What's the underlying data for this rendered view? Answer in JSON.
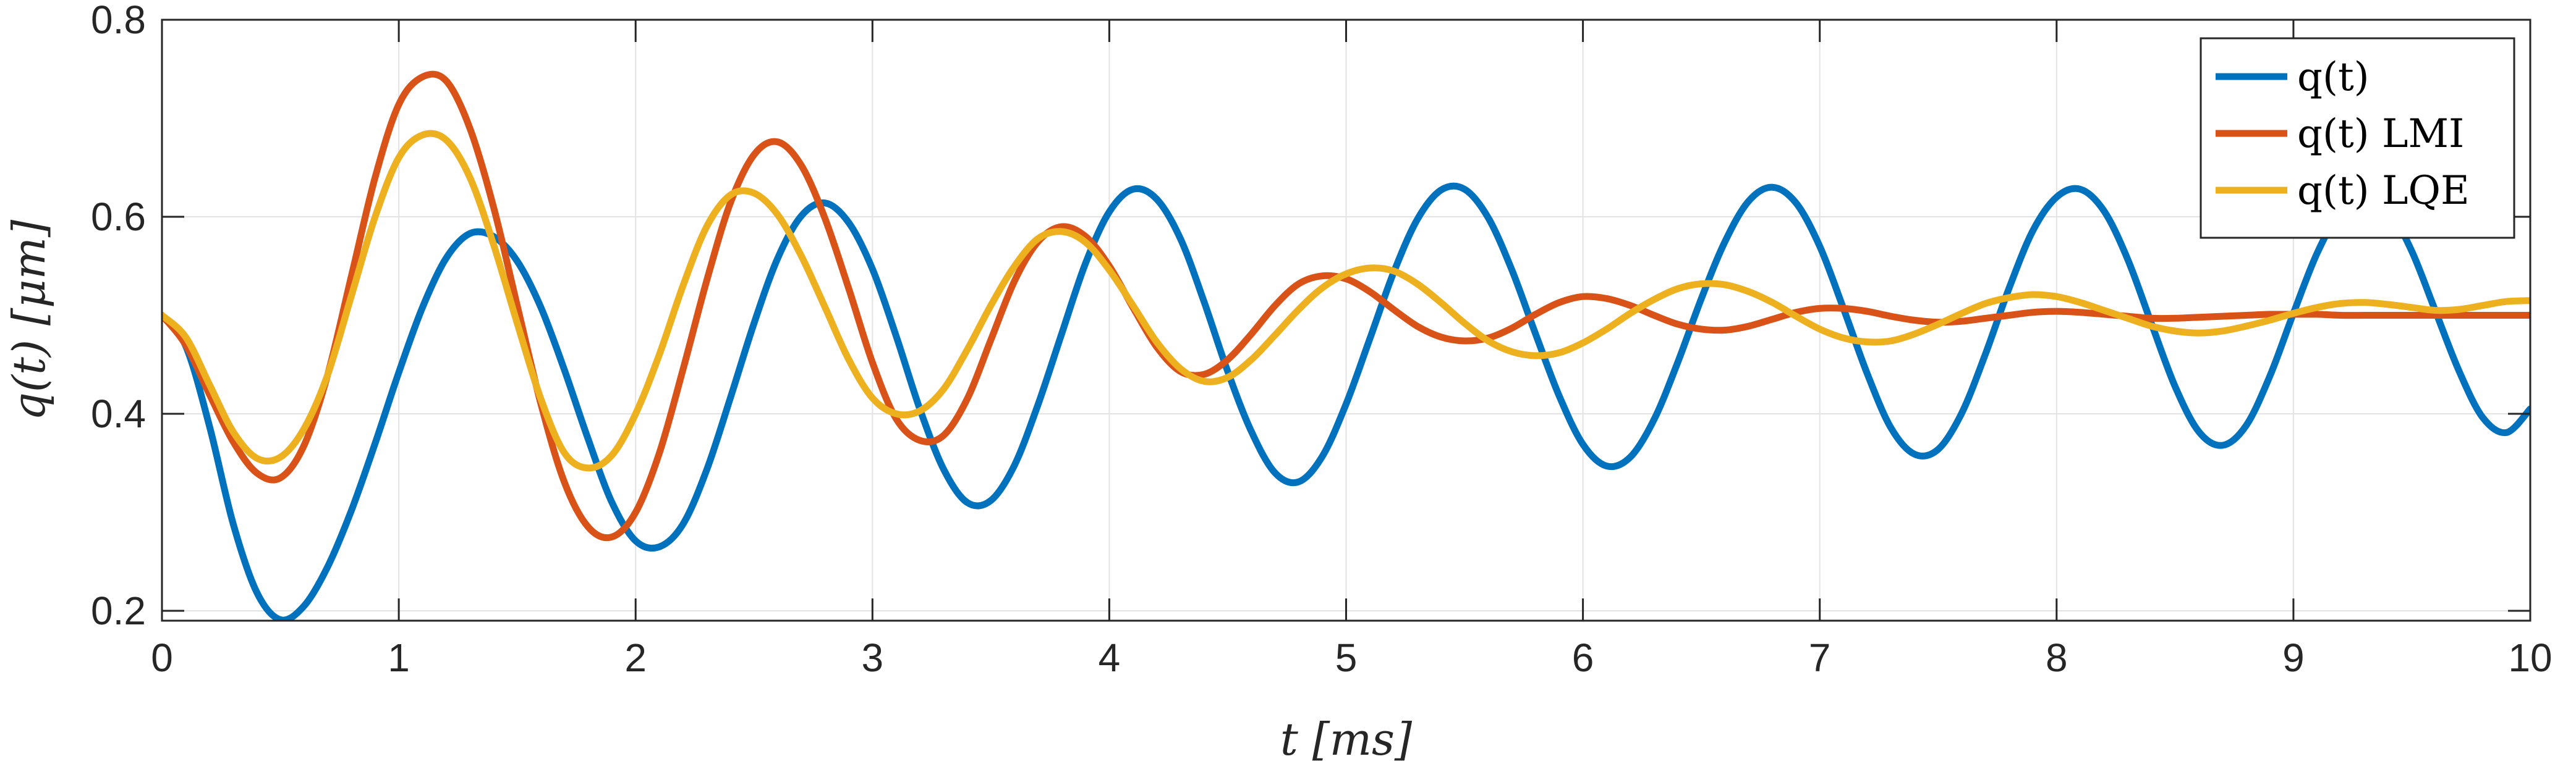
{
  "chart_data": {
    "type": "line",
    "xlabel": "t [ms]",
    "ylabel": "q(t) [μm]",
    "xlim": [
      0,
      10
    ],
    "ylim": [
      0.19,
      0.8
    ],
    "xticks": [
      "0",
      "1",
      "2",
      "3",
      "4",
      "5",
      "6",
      "7",
      "8",
      "9",
      "10"
    ],
    "yticks": [
      "0.2",
      "0.4",
      "0.6",
      "0.8"
    ],
    "grid": true,
    "legend_position": "top-right",
    "series": [
      {
        "name": "q(t)",
        "color": "#0072BD",
        "x": [
          0,
          0.1,
          0.2,
          0.3,
          0.4,
          0.5,
          0.6,
          0.7,
          0.8,
          0.9,
          1.0,
          1.1,
          1.2,
          1.3,
          1.4,
          1.5,
          1.6,
          1.7,
          1.8,
          1.9,
          2.0,
          2.1,
          2.2,
          2.3,
          2.4,
          2.5,
          2.6,
          2.7,
          2.8,
          2.9,
          3.0,
          3.1,
          3.2,
          3.3,
          3.4,
          3.5,
          3.6,
          3.7,
          3.8,
          3.9,
          4.0,
          4.1,
          4.2,
          4.3,
          4.4,
          4.5,
          4.6,
          4.7,
          4.8,
          4.9,
          5.0,
          5.1,
          5.2,
          5.3,
          5.4,
          5.5,
          5.6,
          5.7,
          5.8,
          5.9,
          6.0,
          6.1,
          6.2,
          6.3,
          6.4,
          6.5,
          6.6,
          6.7,
          6.8,
          6.9,
          7.0,
          7.1,
          7.2,
          7.3,
          7.4,
          7.5,
          7.6,
          7.7,
          7.8,
          7.9,
          8.0,
          8.1,
          8.2,
          8.3,
          8.4,
          8.5,
          8.6,
          8.7,
          8.8,
          8.9,
          9.0,
          9.1,
          9.2,
          9.3,
          9.4,
          9.5,
          9.6,
          9.7,
          9.8,
          9.9,
          10.0
        ],
        "y": [
          0.5,
          0.469,
          0.388,
          0.289,
          0.219,
          0.191,
          0.205,
          0.245,
          0.302,
          0.37,
          0.442,
          0.508,
          0.558,
          0.583,
          0.58,
          0.555,
          0.508,
          0.444,
          0.374,
          0.31,
          0.271,
          0.265,
          0.288,
          0.343,
          0.416,
          0.492,
          0.558,
          0.601,
          0.614,
          0.594,
          0.547,
          0.479,
          0.405,
          0.344,
          0.31,
          0.312,
          0.348,
          0.41,
          0.482,
          0.553,
          0.605,
          0.628,
          0.618,
          0.578,
          0.514,
          0.443,
          0.382,
          0.34,
          0.331,
          0.357,
          0.41,
          0.476,
          0.543,
          0.597,
          0.627,
          0.628,
          0.599,
          0.546,
          0.481,
          0.418,
          0.369,
          0.347,
          0.356,
          0.394,
          0.452,
          0.517,
          0.575,
          0.616,
          0.63,
          0.614,
          0.57,
          0.507,
          0.441,
          0.386,
          0.359,
          0.364,
          0.401,
          0.461,
          0.528,
          0.586,
          0.62,
          0.628,
          0.606,
          0.557,
          0.492,
          0.428,
          0.382,
          0.368,
          0.388,
          0.438,
          0.502,
          0.563,
          0.606,
          0.622,
          0.608,
          0.565,
          0.504,
          0.443,
          0.396,
          0.381,
          0.405
        ]
      },
      {
        "name": "q(t) LMI",
        "color": "#D95319",
        "x": [
          0,
          0.1,
          0.2,
          0.3,
          0.4,
          0.5,
          0.6,
          0.7,
          0.8,
          0.9,
          1.0,
          1.1,
          1.2,
          1.3,
          1.4,
          1.5,
          1.6,
          1.7,
          1.8,
          1.9,
          2.0,
          2.1,
          2.2,
          2.3,
          2.4,
          2.5,
          2.6,
          2.7,
          2.8,
          2.9,
          3.0,
          3.1,
          3.2,
          3.3,
          3.4,
          3.5,
          3.6,
          3.7,
          3.8,
          3.9,
          4.0,
          4.1,
          4.2,
          4.3,
          4.4,
          4.5,
          4.6,
          4.7,
          4.8,
          4.9,
          5.0,
          5.1,
          5.2,
          5.3,
          5.4,
          5.5,
          5.6,
          5.7,
          5.8,
          5.9,
          6.0,
          6.1,
          6.2,
          6.3,
          6.4,
          6.5,
          6.6,
          6.7,
          6.8,
          6.9,
          7.0,
          7.1,
          7.2,
          7.3,
          7.4,
          7.5,
          7.6,
          7.7,
          7.8,
          7.9,
          8.0,
          8.1,
          8.2,
          8.3,
          8.4,
          8.5,
          8.6,
          8.7,
          8.8,
          8.9,
          9.0,
          9.1,
          9.2,
          9.3,
          9.4,
          9.5,
          9.6,
          9.7,
          9.8,
          9.9,
          10.0
        ],
        "y": [
          0.5,
          0.47,
          0.42,
          0.372,
          0.34,
          0.335,
          0.368,
          0.44,
          0.54,
          0.64,
          0.714,
          0.742,
          0.738,
          0.69,
          0.61,
          0.51,
          0.41,
          0.33,
          0.285,
          0.275,
          0.3,
          0.36,
          0.445,
          0.535,
          0.614,
          0.663,
          0.676,
          0.652,
          0.598,
          0.527,
          0.452,
          0.395,
          0.373,
          0.378,
          0.415,
          0.475,
          0.535,
          0.575,
          0.59,
          0.58,
          0.55,
          0.508,
          0.468,
          0.443,
          0.44,
          0.455,
          0.481,
          0.51,
          0.532,
          0.54,
          0.537,
          0.524,
          0.506,
          0.489,
          0.478,
          0.474,
          0.477,
          0.487,
          0.501,
          0.513,
          0.519,
          0.517,
          0.51,
          0.5,
          0.491,
          0.486,
          0.485,
          0.489,
          0.496,
          0.503,
          0.507,
          0.507,
          0.504,
          0.499,
          0.495,
          0.493,
          0.494,
          0.497,
          0.5,
          0.503,
          0.504,
          0.503,
          0.501,
          0.499,
          0.497,
          0.497,
          0.498,
          0.499,
          0.5,
          0.501,
          0.501,
          0.501,
          0.5,
          0.5,
          0.5,
          0.5,
          0.5,
          0.5,
          0.5,
          0.5,
          0.5
        ]
      },
      {
        "name": "q(t) LQE",
        "color": "#EDB120",
        "x": [
          0,
          0.1,
          0.2,
          0.3,
          0.4,
          0.5,
          0.6,
          0.7,
          0.8,
          0.9,
          1.0,
          1.1,
          1.2,
          1.3,
          1.4,
          1.5,
          1.6,
          1.7,
          1.8,
          1.9,
          2.0,
          2.1,
          2.2,
          2.3,
          2.4,
          2.5,
          2.6,
          2.7,
          2.8,
          2.9,
          3.0,
          3.1,
          3.2,
          3.3,
          3.4,
          3.5,
          3.6,
          3.7,
          3.8,
          3.9,
          4.0,
          4.1,
          4.2,
          4.3,
          4.4,
          4.5,
          4.6,
          4.7,
          4.8,
          4.9,
          5.0,
          5.1,
          5.2,
          5.3,
          5.4,
          5.5,
          5.6,
          5.7,
          5.8,
          5.9,
          6.0,
          6.1,
          6.2,
          6.3,
          6.4,
          6.5,
          6.6,
          6.7,
          6.8,
          6.9,
          7.0,
          7.1,
          7.2,
          7.3,
          7.4,
          7.5,
          7.6,
          7.7,
          7.8,
          7.9,
          8.0,
          8.1,
          8.2,
          8.3,
          8.4,
          8.5,
          8.6,
          8.7,
          8.8,
          8.9,
          9.0,
          9.1,
          9.2,
          9.3,
          9.4,
          9.5,
          9.6,
          9.7,
          9.8,
          9.9,
          10.0
        ],
        "y": [
          0.5,
          0.478,
          0.43,
          0.382,
          0.355,
          0.356,
          0.385,
          0.44,
          0.52,
          0.6,
          0.66,
          0.683,
          0.678,
          0.64,
          0.572,
          0.492,
          0.415,
          0.36,
          0.345,
          0.358,
          0.4,
          0.46,
          0.53,
          0.59,
          0.622,
          0.624,
          0.602,
          0.56,
          0.508,
          0.455,
          0.416,
          0.4,
          0.403,
          0.425,
          0.465,
          0.51,
          0.55,
          0.578,
          0.585,
          0.574,
          0.546,
          0.51,
          0.473,
          0.446,
          0.433,
          0.437,
          0.455,
          0.48,
          0.506,
          0.528,
          0.542,
          0.548,
          0.545,
          0.532,
          0.513,
          0.492,
          0.474,
          0.463,
          0.459,
          0.462,
          0.472,
          0.486,
          0.502,
          0.516,
          0.527,
          0.532,
          0.531,
          0.524,
          0.513,
          0.499,
          0.486,
          0.477,
          0.473,
          0.474,
          0.481,
          0.491,
          0.502,
          0.512,
          0.518,
          0.521,
          0.519,
          0.513,
          0.505,
          0.497,
          0.489,
          0.484,
          0.482,
          0.484,
          0.489,
          0.495,
          0.502,
          0.508,
          0.512,
          0.513,
          0.511,
          0.508,
          0.505,
          0.506,
          0.51,
          0.514,
          0.515
        ]
      }
    ]
  }
}
